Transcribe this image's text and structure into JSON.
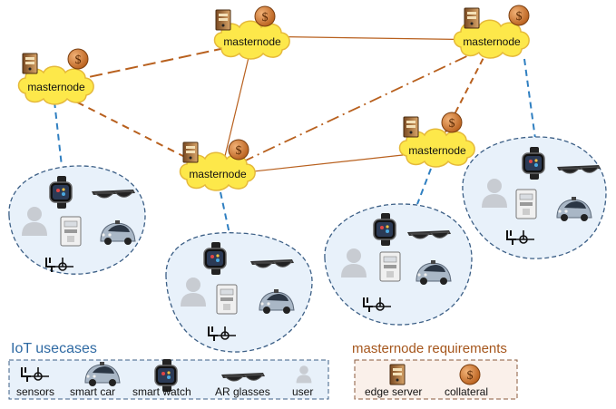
{
  "node_label": "masternode",
  "legend_iot": {
    "title": "IoT usecases",
    "items": [
      "sensors",
      "smart car",
      "smart watch",
      "AR glasses",
      "user"
    ]
  },
  "legend_mn": {
    "title": "masternode requirements",
    "items": [
      "edge server",
      "collateral"
    ]
  },
  "coin_symbol": "$",
  "colors": {
    "cloud_fill": "#fde84a",
    "link_orange": "#b8601e",
    "link_blue": "#2f7fc1",
    "cluster_fill": "#e8f1fa",
    "cluster_stroke": "#3c5f86",
    "coin": "#d5782e"
  }
}
